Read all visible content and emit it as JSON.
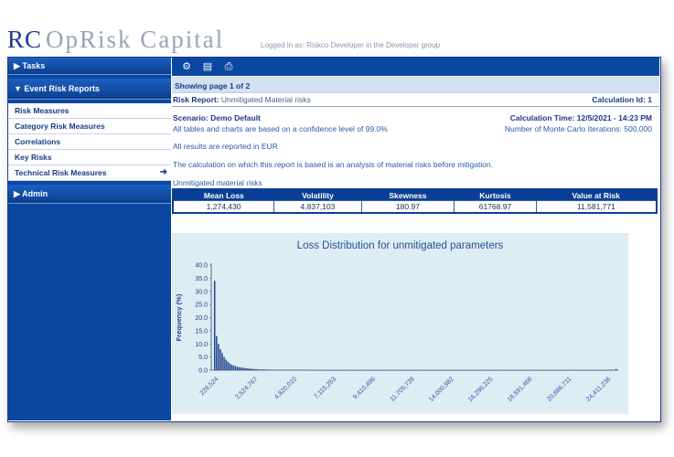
{
  "header": {
    "logo_rc": "RC",
    "logo_text": "OpRisk Capital",
    "login": "Logged in as: Riskco Developer in the Developer group"
  },
  "sidebar": {
    "tasks": "▶ Tasks",
    "event_reports": "▼ Event Risk Reports",
    "items": [
      "Risk Measures",
      "Category Risk Measures",
      "Correlations",
      "Key Risks",
      "Technical Risk Measures"
    ],
    "admin": "▶ Admin"
  },
  "toolbar": {
    "icons": [
      "gear-icon",
      "document-icon",
      "print-icon"
    ]
  },
  "pager": {
    "text": "Showing page  1  of  2"
  },
  "report": {
    "title_label": "Risk Report:",
    "title_value": "Unmitigated  Material  risks",
    "calc_id": "Calculation Id: 1",
    "scenario": "Scenario: Demo Default",
    "calc_time": "Calculation Time: 12/5/2021 - 14:23 PM",
    "confidence": "All tables and charts are based on a confidence level of 99.0%",
    "iterations": "Number of Monte Carlo Iterations: 500,000",
    "currency": "All results are reported in EUR",
    "description": "The calculation on which this report is based is an analysis of material risks before mitigation.",
    "table_caption": "Unmitigated material risks"
  },
  "stats": {
    "headers": [
      "Mean Loss",
      "Volatility",
      "Skewness",
      "Kurtosis",
      "Value at Risk"
    ],
    "values": [
      "1,274,430",
      "4,837,103",
      "180.97",
      "61768.97",
      "11,581,771"
    ]
  },
  "chart_data": {
    "type": "bar",
    "title": "Loss Distribution for  unmitigated parameters",
    "xlabel": "",
    "ylabel": "Frequency (%)",
    "ylim": [
      0,
      40
    ],
    "yticks": [
      "40.0",
      "35.0",
      "30.0",
      "25.0",
      "20.0",
      "15.0",
      "10.0",
      "5.0",
      "0.0"
    ],
    "xtick_labels": [
      "229,524",
      "2,524,767",
      "4,820,010",
      "7,115,253",
      "9,410,496",
      "11,705,739",
      "14,000,982",
      "16,296,225",
      "18,591,468",
      "20,886,711",
      "24,411,236"
    ],
    "values": [
      34.0,
      13.0,
      10.0,
      8.0,
      6.5,
      5.0,
      4.0,
      3.2,
      2.6,
      2.1,
      1.8,
      1.5,
      1.3,
      1.1,
      1.0,
      0.9,
      0.8,
      0.7,
      0.6,
      0.55,
      0.5,
      0.45,
      0.4,
      0.35,
      0.3,
      0.3,
      0.25,
      0.25,
      0.2,
      0.2,
      0.15,
      0.15,
      0.15,
      0.1,
      0.1,
      0.1,
      0.1,
      0.08,
      0.08,
      0.08,
      0.06,
      0.06,
      0.05,
      0.05,
      0.05,
      0.04,
      0.04,
      0.04,
      0.03,
      0.03,
      0.03,
      0.03,
      0.02,
      0.02,
      0.02,
      0.02,
      0.02,
      0.02,
      0.02,
      0.02,
      0.01,
      0.01,
      0.01,
      0.01,
      0.01,
      0.01,
      0.01,
      0.01,
      0.01,
      0.01,
      0.01,
      0.01,
      0.01,
      0.01,
      0.01,
      0.01,
      0.01,
      0.01,
      0.01,
      0.01,
      0.01,
      0.01,
      0.01,
      0.01,
      0.01,
      0.01,
      0.01,
      0.01,
      0.01,
      0.01,
      0.01,
      0.01,
      0.01,
      0.01,
      0.01,
      0.01,
      0.01,
      0.01,
      0.01,
      0.01,
      0.01,
      0.01,
      0.01,
      0.01,
      0.01,
      0.01,
      0.01,
      0.01,
      0.01,
      0.01,
      0.01,
      0.01,
      0.01,
      0.01,
      0.01,
      0.01,
      0.01,
      0.01,
      0.01,
      0.01,
      0.01,
      0.01,
      0.01,
      0.01,
      0.01,
      0.01,
      0.01,
      0.01,
      0.01,
      0.01,
      0.01,
      0.01,
      0.01,
      0.01,
      0.01,
      0.01,
      0.01,
      0.01,
      0.01,
      0.01,
      0.01,
      0.01,
      0.01,
      0.01,
      0.01,
      0.01,
      0.01,
      0.01,
      0.01,
      0.01,
      0.01,
      0.01,
      0.01,
      0.01,
      0.01,
      0.01,
      0.01,
      0.01,
      0.01,
      0.01,
      0.01,
      0.01,
      0.01,
      0.01,
      0.01,
      0.01,
      0.01,
      0.01,
      0.01,
      0.01,
      0.01,
      0.01,
      0.01,
      0.01,
      0.01,
      0.01,
      0.01,
      0.01,
      0.01,
      0.01,
      0.01,
      0.01,
      0.01,
      0.01,
      0.01,
      0.01,
      0.01,
      0.01,
      0.01,
      0.01,
      0.01,
      0.01,
      0.01,
      0.01,
      0.01,
      0.01,
      0.01,
      0.01,
      0.01,
      0.01,
      0.01,
      0.01,
      0.01,
      0.01,
      0.01,
      0.01,
      0.01,
      0.01,
      0.01,
      0.01,
      0.01,
      0.01,
      0.5
    ],
    "colors": {
      "bar": "#1f3f8f",
      "background": "#dcedf3",
      "axis": "#44506a"
    }
  }
}
